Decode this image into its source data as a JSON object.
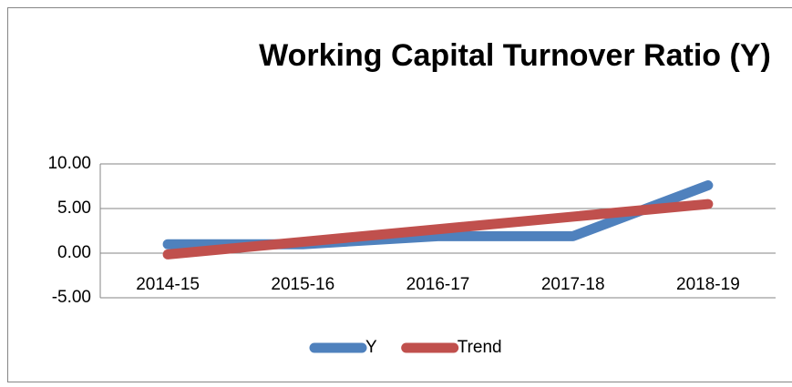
{
  "chart_data": {
    "type": "line",
    "title": "Working Capital Turnover Ratio (Y)",
    "categories": [
      "2014-15",
      "2015-16",
      "2016-17",
      "2017-18",
      "2018-19"
    ],
    "series": [
      {
        "name": "Y",
        "color": "#4f81bd",
        "values": [
          1.0,
          1.0,
          1.9,
          1.9,
          7.6
        ]
      },
      {
        "name": "Trend",
        "color": "#c0504d",
        "values": [
          -0.14,
          1.27,
          2.68,
          4.09,
          5.5
        ]
      }
    ],
    "ylim": [
      -5,
      10
    ],
    "yticks": [
      {
        "value": -5,
        "label": "-5.00"
      },
      {
        "value": 0,
        "label": "0.00"
      },
      {
        "value": 5,
        "label": "5.00"
      },
      {
        "value": 10,
        "label": "10.00"
      }
    ],
    "grid": true,
    "legend": "bottom"
  }
}
